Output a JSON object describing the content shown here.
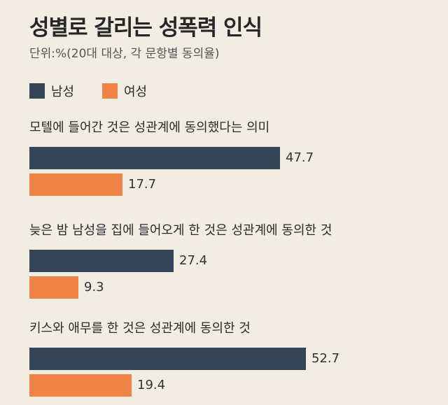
{
  "title": "성별로 갈리는 성폭력 인식",
  "subtitle": "단위:%(20대 대상, 각 문항별 동의율)",
  "colors": {
    "male": "#364457",
    "female": "#f08446",
    "background": "#f1ede3"
  },
  "chart_data": {
    "type": "bar",
    "orientation": "horizontal",
    "title": "성별로 갈리는 성폭력 인식",
    "subtitle": "단위:%(20대 대상, 각 문항별 동의율)",
    "categories": [
      "모텔에 들어간 것은 성관계에 동의했다는 의미",
      "늦은 밤 남성을 집에 들어오게 한 것은 성관계에 동의한 것",
      "키스와 애무를 한 것은 성관계에 동의한 것"
    ],
    "series": [
      {
        "name": "남성",
        "values": [
          47.7,
          27.4,
          52.7
        ]
      },
      {
        "name": "여성",
        "values": [
          17.7,
          9.3,
          19.4
        ]
      }
    ],
    "value_labels": [
      [
        "47.7",
        "27.4",
        "52.7"
      ],
      [
        "17.7",
        "9.3",
        "19.4"
      ]
    ],
    "legend_position": "top-left",
    "grid": false,
    "xlim": [
      0,
      60
    ]
  }
}
